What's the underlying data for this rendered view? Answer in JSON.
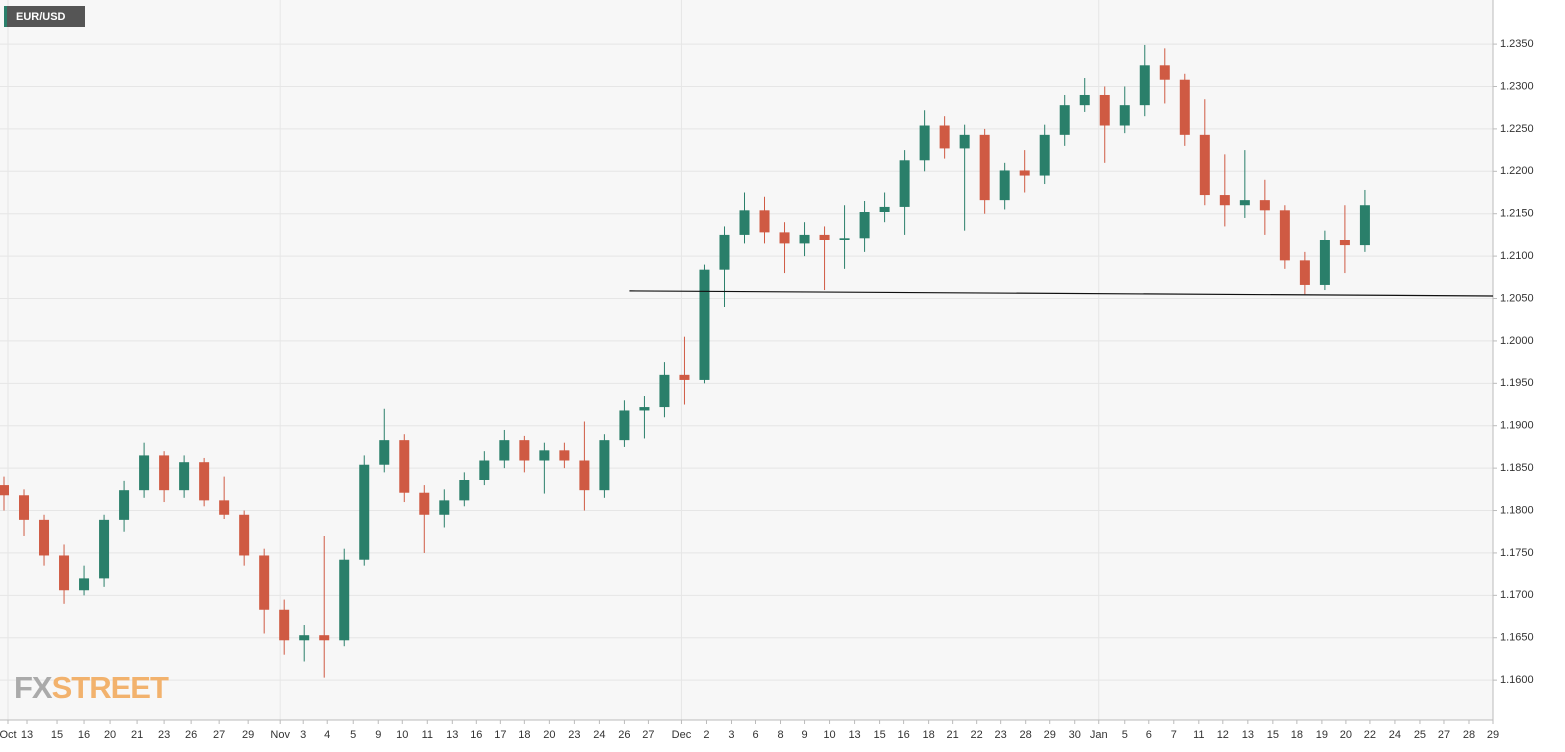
{
  "chart_data": {
    "type": "candlestick",
    "title": "EUR/USD",
    "x": [
      1,
      6,
      11,
      16,
      21,
      26,
      31,
      36,
      41,
      46,
      51,
      56,
      61,
      66,
      71,
      76,
      81,
      86,
      91,
      96,
      101,
      106,
      111,
      116,
      121,
      126,
      131,
      136,
      141,
      146,
      151,
      156,
      161,
      166,
      171,
      176,
      181,
      186,
      191,
      196,
      201,
      206,
      211,
      216,
      221,
      226,
      231,
      236,
      241,
      246,
      251,
      256,
      261,
      266,
      271,
      276,
      281,
      286,
      291,
      296,
      301,
      306,
      311,
      316,
      321,
      326,
      331,
      336,
      341
    ],
    "open": [
      1.183,
      1.1818,
      1.1789,
      1.1747,
      1.1706,
      1.172,
      1.1789,
      1.1824,
      1.1865,
      1.1824,
      1.1857,
      1.1812,
      1.1795,
      1.1747,
      1.1683,
      1.1647,
      1.1653,
      1.1647,
      1.1742,
      1.1854,
      1.1883,
      1.1821,
      1.1795,
      1.1812,
      1.1836,
      1.1859,
      1.1883,
      1.1859,
      1.1871,
      1.1859,
      1.1824,
      1.1883,
      1.1918,
      1.1922,
      1.196,
      1.1954,
      1.2084,
      1.2125,
      1.2154,
      1.2128,
      1.2115,
      1.2125,
      1.2119,
      1.2121,
      1.2152,
      1.2158,
      1.2213,
      1.2254,
      1.2227,
      1.2243,
      1.2166,
      1.2201,
      1.2195,
      1.2243,
      1.2278,
      1.229,
      1.2254,
      1.2278,
      1.2325,
      1.2308,
      1.2243,
      1.2172,
      1.216,
      1.2166,
      1.2154,
      1.2095,
      1.2066,
      1.2119,
      1.2113
    ],
    "high": [
      1.184,
      1.1825,
      1.1795,
      1.176,
      1.1735,
      1.1795,
      1.1835,
      1.188,
      1.187,
      1.1865,
      1.1862,
      1.184,
      1.18,
      1.1755,
      1.1695,
      1.1665,
      1.177,
      1.1755,
      1.1865,
      1.192,
      1.189,
      1.183,
      1.1825,
      1.1845,
      1.187,
      1.1895,
      1.1888,
      1.188,
      1.188,
      1.1905,
      1.189,
      1.193,
      1.1935,
      1.1975,
      1.2005,
      1.209,
      1.2135,
      1.2175,
      1.217,
      1.214,
      1.214,
      1.2135,
      1.216,
      1.2165,
      1.2175,
      1.2225,
      1.2272,
      1.2265,
      1.2255,
      1.225,
      1.221,
      1.2225,
      1.2255,
      1.229,
      1.231,
      1.23,
      1.23,
      1.2349,
      1.2345,
      1.2315,
      1.2285,
      1.222,
      1.2225,
      1.219,
      1.216,
      1.2105,
      1.213,
      1.216,
      1.2178
    ],
    "low": [
      1.18,
      1.177,
      1.1735,
      1.169,
      1.17,
      1.171,
      1.1775,
      1.1815,
      1.181,
      1.1815,
      1.1805,
      1.179,
      1.1735,
      1.1655,
      1.163,
      1.1622,
      1.1603,
      1.164,
      1.1735,
      1.1845,
      1.181,
      1.175,
      1.178,
      1.1805,
      1.183,
      1.185,
      1.1845,
      1.182,
      1.185,
      1.18,
      1.1815,
      1.1875,
      1.1885,
      1.191,
      1.1925,
      1.195,
      1.204,
      1.2115,
      1.2115,
      1.208,
      1.21,
      1.206,
      1.2085,
      1.2105,
      1.214,
      1.2125,
      1.22,
      1.2215,
      1.213,
      1.215,
      1.2155,
      1.2175,
      1.2185,
      1.223,
      1.227,
      1.221,
      1.2245,
      1.2265,
      1.228,
      1.223,
      1.216,
      1.2135,
      1.2145,
      1.2125,
      1.2085,
      1.2055,
      1.206,
      1.208,
      1.2105
    ],
    "close": [
      1.1818,
      1.1789,
      1.1747,
      1.1706,
      1.172,
      1.1789,
      1.1824,
      1.1865,
      1.1824,
      1.1857,
      1.1812,
      1.1795,
      1.1747,
      1.1683,
      1.1647,
      1.1653,
      1.1647,
      1.1742,
      1.1854,
      1.1883,
      1.1821,
      1.1795,
      1.1812,
      1.1836,
      1.1859,
      1.1883,
      1.1859,
      1.1871,
      1.1859,
      1.1824,
      1.1883,
      1.1918,
      1.1922,
      1.196,
      1.1954,
      1.2084,
      1.2125,
      1.2154,
      1.2128,
      1.2115,
      1.2125,
      1.2119,
      1.2121,
      1.2152,
      1.2158,
      1.2213,
      1.2254,
      1.2227,
      1.2243,
      1.2166,
      1.2201,
      1.2195,
      1.2243,
      1.2278,
      1.229,
      1.2254,
      1.2278,
      1.2325,
      1.2308,
      1.2243,
      1.2172,
      1.216,
      1.2166,
      1.2154,
      1.2095,
      1.2066,
      1.2119,
      1.2113,
      1.216
    ],
    "up_color": "#2a7f6a",
    "down_color": "#cf5a43",
    "xlim": [
      0,
      373
    ],
    "xticks": [
      {
        "value": 2,
        "label": "Oct"
      },
      {
        "value": 6.75,
        "label": "13"
      },
      {
        "value": 14.25,
        "label": "15"
      },
      {
        "value": 21,
        "label": "16"
      },
      {
        "value": 27.5,
        "label": "20"
      },
      {
        "value": 34.25,
        "label": "21"
      },
      {
        "value": 41,
        "label": "23"
      },
      {
        "value": 47.75,
        "label": "26"
      },
      {
        "value": 54.75,
        "label": "27"
      },
      {
        "value": 62,
        "label": "29"
      },
      {
        "value": 70,
        "label": "Nov"
      },
      {
        "value": 75.75,
        "label": "3"
      },
      {
        "value": 81.75,
        "label": "4"
      },
      {
        "value": 88.25,
        "label": "5"
      },
      {
        "value": 94.5,
        "label": "9"
      },
      {
        "value": 100.5,
        "label": "10"
      },
      {
        "value": 106.75,
        "label": "11"
      },
      {
        "value": 113,
        "label": "13"
      },
      {
        "value": 119,
        "label": "16"
      },
      {
        "value": 125,
        "label": "17"
      },
      {
        "value": 131,
        "label": "18"
      },
      {
        "value": 137.25,
        "label": "20"
      },
      {
        "value": 143.5,
        "label": "23"
      },
      {
        "value": 149.75,
        "label": "24"
      },
      {
        "value": 156,
        "label": "26"
      },
      {
        "value": 162,
        "label": "27"
      },
      {
        "value": 170.25,
        "label": "Dec"
      },
      {
        "value": 176.5,
        "label": "2"
      },
      {
        "value": 182.75,
        "label": "3"
      },
      {
        "value": 188.75,
        "label": "6"
      },
      {
        "value": 195,
        "label": "8"
      },
      {
        "value": 201,
        "label": "9"
      },
      {
        "value": 207.25,
        "label": "10"
      },
      {
        "value": 213.5,
        "label": "13"
      },
      {
        "value": 219.75,
        "label": "15"
      },
      {
        "value": 225.75,
        "label": "16"
      },
      {
        "value": 232,
        "label": "18"
      },
      {
        "value": 238,
        "label": "21"
      },
      {
        "value": 244,
        "label": "22"
      },
      {
        "value": 250,
        "label": "23"
      },
      {
        "value": 256.25,
        "label": "28"
      },
      {
        "value": 262.25,
        "label": "29"
      },
      {
        "value": 268.5,
        "label": "30"
      },
      {
        "value": 274.5,
        "label": "Jan"
      },
      {
        "value": 281,
        "label": "5"
      },
      {
        "value": 287,
        "label": "6"
      },
      {
        "value": 293.25,
        "label": "7"
      },
      {
        "value": 299.5,
        "label": "11"
      },
      {
        "value": 305.5,
        "label": "12"
      },
      {
        "value": 311.75,
        "label": "13"
      },
      {
        "value": 318,
        "label": "15"
      },
      {
        "value": 324,
        "label": "18"
      },
      {
        "value": 330.25,
        "label": "19"
      },
      {
        "value": 336.25,
        "label": "20"
      },
      {
        "value": 342.25,
        "label": "22"
      },
      {
        "value": 348.5,
        "label": "24"
      },
      {
        "value": 354.75,
        "label": "25"
      },
      {
        "value": 360.75,
        "label": "27"
      },
      {
        "value": 367,
        "label": "28"
      },
      {
        "value": 373,
        "label": "29"
      }
    ],
    "ylim": [
      1.1553,
      1.2402
    ],
    "yticks": [
      {
        "value": 1.16,
        "label": "1.1600"
      },
      {
        "value": 1.165,
        "label": "1.1650"
      },
      {
        "value": 1.17,
        "label": "1.1700"
      },
      {
        "value": 1.175,
        "label": "1.1750"
      },
      {
        "value": 1.18,
        "label": "1.1800"
      },
      {
        "value": 1.185,
        "label": "1.1850"
      },
      {
        "value": 1.19,
        "label": "1.1900"
      },
      {
        "value": 1.195,
        "label": "1.1950"
      },
      {
        "value": 1.2,
        "label": "1.2000"
      },
      {
        "value": 1.205,
        "label": "1.2050"
      },
      {
        "value": 1.21,
        "label": "1.2100"
      },
      {
        "value": 1.215,
        "label": "1.2150"
      },
      {
        "value": 1.22,
        "label": "1.2200"
      },
      {
        "value": 1.225,
        "label": "1.2250"
      },
      {
        "value": 1.23,
        "label": "1.2300"
      },
      {
        "value": 1.235,
        "label": "1.2350"
      }
    ],
    "grid": true,
    "trendline": {
      "x": [
        157.25,
        373
      ],
      "y": [
        1.2059,
        1.2053
      ],
      "color": "#111111"
    }
  },
  "watermark": {
    "parts": [
      "FX",
      "STREET"
    ]
  }
}
